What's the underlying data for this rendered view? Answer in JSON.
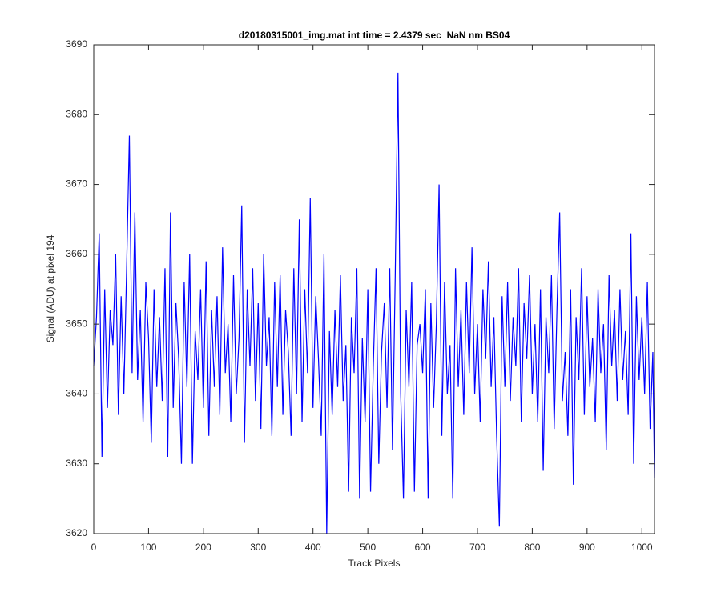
{
  "chart_data": {
    "type": "line",
    "title": "d20180315001_img.mat int time = 2.4379 sec  NaN nm BS04",
    "xlabel": "Track Pixels",
    "ylabel": "Signal (ADU) at pixel 194",
    "xlim": [
      0,
      1023
    ],
    "ylim": [
      3620,
      3690
    ],
    "xticks": [
      0,
      100,
      200,
      300,
      400,
      500,
      600,
      700,
      800,
      900,
      1000
    ],
    "yticks": [
      3620,
      3630,
      3640,
      3650,
      3660,
      3670,
      3680,
      3690
    ],
    "x": [
      0,
      5,
      10,
      15,
      20,
      25,
      30,
      35,
      40,
      45,
      50,
      55,
      60,
      65,
      70,
      75,
      80,
      85,
      90,
      95,
      100,
      105,
      110,
      115,
      120,
      125,
      130,
      135,
      140,
      145,
      150,
      155,
      160,
      165,
      170,
      175,
      180,
      185,
      190,
      195,
      200,
      205,
      210,
      215,
      220,
      225,
      230,
      235,
      240,
      245,
      250,
      255,
      260,
      265,
      270,
      275,
      280,
      285,
      290,
      295,
      300,
      305,
      310,
      315,
      320,
      325,
      330,
      335,
      340,
      345,
      350,
      355,
      360,
      365,
      370,
      375,
      380,
      385,
      390,
      395,
      400,
      405,
      410,
      415,
      420,
      425,
      430,
      435,
      440,
      445,
      450,
      455,
      460,
      465,
      470,
      475,
      480,
      485,
      490,
      495,
      500,
      505,
      510,
      515,
      520,
      525,
      530,
      535,
      540,
      545,
      550,
      555,
      560,
      565,
      570,
      575,
      580,
      585,
      590,
      595,
      600,
      605,
      610,
      615,
      620,
      625,
      630,
      635,
      640,
      645,
      650,
      655,
      660,
      665,
      670,
      675,
      680,
      685,
      690,
      695,
      700,
      705,
      710,
      715,
      720,
      725,
      730,
      735,
      740,
      745,
      750,
      755,
      760,
      765,
      770,
      775,
      780,
      785,
      790,
      795,
      800,
      805,
      810,
      815,
      820,
      825,
      830,
      835,
      840,
      845,
      850,
      855,
      860,
      865,
      870,
      875,
      880,
      885,
      890,
      895,
      900,
      905,
      910,
      915,
      920,
      925,
      930,
      935,
      940,
      945,
      950,
      955,
      960,
      965,
      970,
      975,
      980,
      985,
      990,
      995,
      1000,
      1005,
      1010,
      1015,
      1020,
      1023
    ],
    "series": [
      {
        "name": "signal",
        "color": "#0000ff",
        "values": [
          3644,
          3651,
          3663,
          3631,
          3655,
          3638,
          3652,
          3647,
          3660,
          3637,
          3654,
          3640,
          3658,
          3677,
          3643,
          3666,
          3642,
          3652,
          3636,
          3656,
          3648,
          3633,
          3655,
          3641,
          3651,
          3639,
          3658,
          3631,
          3666,
          3638,
          3653,
          3645,
          3630,
          3656,
          3641,
          3660,
          3630,
          3649,
          3642,
          3655,
          3638,
          3659,
          3634,
          3652,
          3641,
          3654,
          3637,
          3661,
          3643,
          3650,
          3636,
          3657,
          3640,
          3648,
          3667,
          3633,
          3655,
          3644,
          3658,
          3639,
          3653,
          3635,
          3660,
          3644,
          3651,
          3634,
          3656,
          3641,
          3657,
          3637,
          3652,
          3646,
          3634,
          3658,
          3640,
          3665,
          3636,
          3655,
          3643,
          3668,
          3638,
          3654,
          3645,
          3634,
          3660,
          3620,
          3649,
          3637,
          3652,
          3641,
          3657,
          3639,
          3647,
          3626,
          3651,
          3643,
          3658,
          3625,
          3648,
          3636,
          3655,
          3626,
          3644,
          3658,
          3630,
          3646,
          3653,
          3638,
          3658,
          3632,
          3657,
          3686,
          3640,
          3625,
          3652,
          3641,
          3656,
          3626,
          3647,
          3650,
          3643,
          3655,
          3625,
          3653,
          3638,
          3650,
          3670,
          3634,
          3656,
          3640,
          3647,
          3625,
          3658,
          3641,
          3652,
          3637,
          3656,
          3643,
          3661,
          3640,
          3650,
          3636,
          3655,
          3645,
          3659,
          3641,
          3651,
          3634,
          3621,
          3654,
          3641,
          3656,
          3639,
          3651,
          3644,
          3658,
          3636,
          3653,
          3645,
          3657,
          3640,
          3650,
          3636,
          3655,
          3629,
          3651,
          3643,
          3657,
          3635,
          3652,
          3666,
          3639,
          3646,
          3634,
          3655,
          3627,
          3651,
          3642,
          3658,
          3637,
          3654,
          3641,
          3648,
          3636,
          3655,
          3643,
          3650,
          3632,
          3657,
          3644,
          3652,
          3639,
          3655,
          3642,
          3649,
          3637,
          3663,
          3630,
          3654,
          3642,
          3651,
          3640,
          3656,
          3635,
          3646,
          3628
        ]
      }
    ]
  }
}
